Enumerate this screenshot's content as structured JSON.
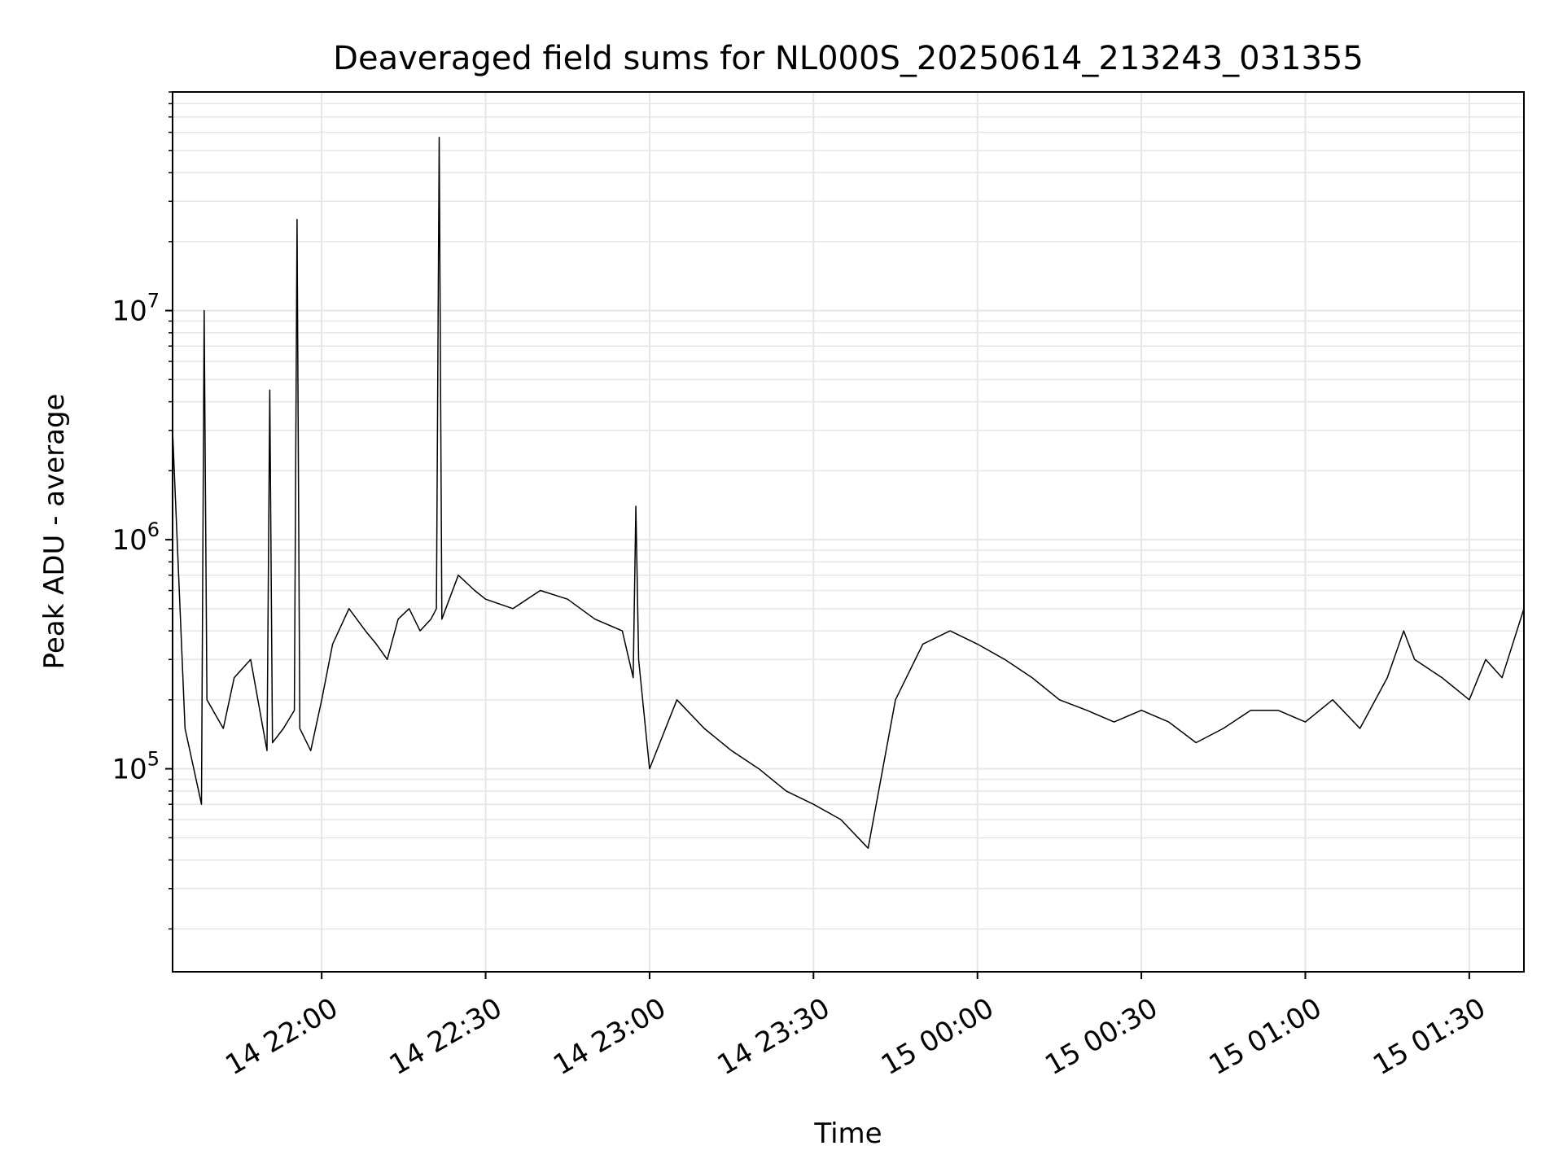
{
  "chart_data": {
    "type": "line",
    "title": "Deaveraged field sums for NL000S_20250614_213243_031355",
    "xlabel": "Time",
    "ylabel": "Peak ADU - average",
    "y_scale": "log",
    "grid": true,
    "line_color": "#000000",
    "grid_color": "#e6e6e6",
    "xlim": [
      "2025-06-14T21:32:43",
      "2025-06-15T01:40:00"
    ],
    "ylim": [
      13000,
      90000000
    ],
    "x_ticks": [
      {
        "value": "2025-06-14T22:00:00",
        "label": "14 22:00"
      },
      {
        "value": "2025-06-14T22:30:00",
        "label": "14 22:30"
      },
      {
        "value": "2025-06-14T23:00:00",
        "label": "14 23:00"
      },
      {
        "value": "2025-06-14T23:30:00",
        "label": "14 23:30"
      },
      {
        "value": "2025-06-15T00:00:00",
        "label": "15 00:00"
      },
      {
        "value": "2025-06-15T00:30:00",
        "label": "15 00:30"
      },
      {
        "value": "2025-06-15T01:00:00",
        "label": "15 01:00"
      },
      {
        "value": "2025-06-15T01:30:00",
        "label": "15 01:30"
      }
    ],
    "y_ticks": [
      {
        "value": 100000,
        "base": "10",
        "exp": "5"
      },
      {
        "value": 1000000,
        "base": "10",
        "exp": "6"
      },
      {
        "value": 10000000,
        "base": "10",
        "exp": "7"
      }
    ],
    "series": [
      {
        "x": [
          "2025-06-14T21:32:43",
          "2025-06-14T21:35:00",
          "2025-06-14T21:38:00",
          "2025-06-14T21:38:30",
          "2025-06-14T21:39:00",
          "2025-06-14T21:42:00",
          "2025-06-14T21:44:00",
          "2025-06-14T21:47:00",
          "2025-06-14T21:50:00",
          "2025-06-14T21:50:30",
          "2025-06-14T21:51:00",
          "2025-06-14T21:53:00",
          "2025-06-14T21:55:00",
          "2025-06-14T21:55:30",
          "2025-06-14T21:56:00",
          "2025-06-14T21:58:00",
          "2025-06-14T22:00:00",
          "2025-06-14T22:02:00",
          "2025-06-14T22:05:00",
          "2025-06-14T22:08:00",
          "2025-06-14T22:10:00",
          "2025-06-14T22:12:00",
          "2025-06-14T22:14:00",
          "2025-06-14T22:16:00",
          "2025-06-14T22:18:00",
          "2025-06-14T22:20:00",
          "2025-06-14T22:21:00",
          "2025-06-14T22:21:30",
          "2025-06-14T22:22:00",
          "2025-06-14T22:25:00",
          "2025-06-14T22:28:00",
          "2025-06-14T22:30:00",
          "2025-06-14T22:35:00",
          "2025-06-14T22:40:00",
          "2025-06-14T22:45:00",
          "2025-06-14T22:50:00",
          "2025-06-14T22:55:00",
          "2025-06-14T22:57:00",
          "2025-06-14T22:57:30",
          "2025-06-14T22:58:00",
          "2025-06-14T23:00:00",
          "2025-06-14T23:05:00",
          "2025-06-14T23:10:00",
          "2025-06-14T23:15:00",
          "2025-06-14T23:20:00",
          "2025-06-14T23:25:00",
          "2025-06-14T23:30:00",
          "2025-06-14T23:35:00",
          "2025-06-14T23:40:00",
          "2025-06-14T23:45:00",
          "2025-06-14T23:50:00",
          "2025-06-14T23:55:00",
          "2025-06-15T00:00:00",
          "2025-06-15T00:05:00",
          "2025-06-15T00:10:00",
          "2025-06-15T00:15:00",
          "2025-06-15T00:20:00",
          "2025-06-15T00:25:00",
          "2025-06-15T00:30:00",
          "2025-06-15T00:35:00",
          "2025-06-15T00:40:00",
          "2025-06-15T00:45:00",
          "2025-06-15T00:50:00",
          "2025-06-15T00:55:00",
          "2025-06-15T01:00:00",
          "2025-06-15T01:05:00",
          "2025-06-15T01:10:00",
          "2025-06-15T01:15:00",
          "2025-06-15T01:18:00",
          "2025-06-15T01:20:00",
          "2025-06-15T01:25:00",
          "2025-06-15T01:30:00",
          "2025-06-15T01:33:00",
          "2025-06-15T01:36:00",
          "2025-06-15T01:40:00"
        ],
        "y": [
          3000000,
          150000,
          70000,
          10000000,
          200000,
          150000,
          250000,
          300000,
          120000,
          4500000,
          130000,
          150000,
          180000,
          25000000,
          150000,
          120000,
          200000,
          350000,
          500000,
          400000,
          350000,
          300000,
          450000,
          500000,
          400000,
          450000,
          500000,
          57000000,
          450000,
          700000,
          600000,
          550000,
          500000,
          600000,
          550000,
          450000,
          400000,
          250000,
          1400000,
          300000,
          100000,
          200000,
          150000,
          120000,
          100000,
          80000,
          70000,
          60000,
          45000,
          200000,
          350000,
          400000,
          350000,
          300000,
          250000,
          200000,
          180000,
          160000,
          180000,
          160000,
          130000,
          150000,
          180000,
          180000,
          160000,
          200000,
          150000,
          250000,
          400000,
          300000,
          250000,
          200000,
          300000,
          250000,
          500000
        ]
      }
    ]
  }
}
